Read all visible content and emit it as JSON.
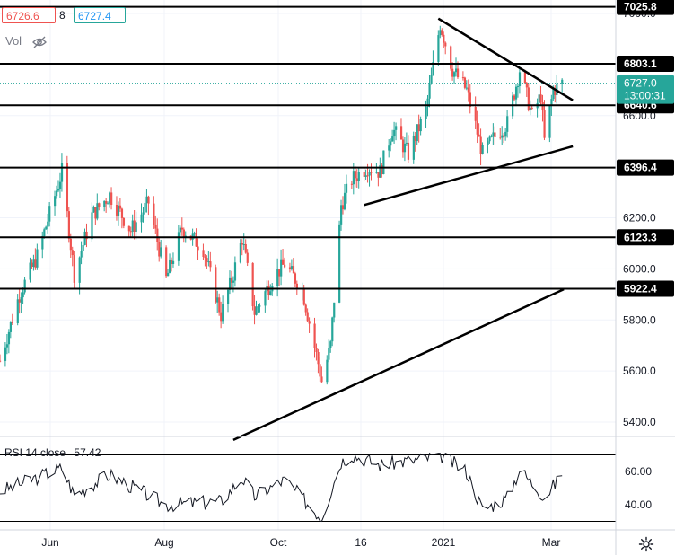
{
  "header": {
    "bid": "6726.6",
    "spread": "8",
    "ask": "6727.4",
    "volume_label": "Vol"
  },
  "rsi_legend": {
    "label": "RSI 14 close",
    "value": "57.42"
  },
  "price_axis": {
    "ticks": [
      "7000.0",
      "6600.0",
      "6200.0",
      "6000.0",
      "5800.0",
      "5600.0",
      "5400.0"
    ],
    "level_labels": [
      "7025.8",
      "6803.1",
      "6640.6",
      "6396.4",
      "6123.3",
      "5922.4"
    ],
    "current_price": "6727.0",
    "countdown": "13:00:31"
  },
  "rsi_axis": {
    "ticks": [
      "60.00",
      "40.00"
    ]
  },
  "time_axis": {
    "labels": [
      "Jun",
      "Aug",
      "Oct",
      "16",
      "2021",
      "Mar"
    ]
  },
  "colors": {
    "up": "#26a69a",
    "down": "#ef5350",
    "levels": "#000000",
    "current_price_bg": "#26a69a",
    "grid": "#f0f3fa"
  },
  "chart_data": [
    {
      "type": "candlestick",
      "y_range": [
        5340,
        7050
      ],
      "current_price": 6727.0,
      "horizontal_levels": [
        7025.8,
        6803.1,
        6640.6,
        6396.4,
        6123.3,
        5922.4
      ],
      "trend_lines": [
        {
          "from": [
            "2021-01-04",
            6980
          ],
          "to": [
            "2021-03-22",
            6660
          ]
        },
        {
          "from": [
            "2020-11-23",
            6250
          ],
          "to": [
            "2021-03-22",
            6480
          ]
        },
        {
          "from": [
            "2020-09-10",
            5330
          ],
          "to": [
            "2021-03-16",
            5920
          ]
        }
      ],
      "close_path": [
        [
          "2020-05-01",
          5640
        ],
        [
          "2020-05-12",
          5900
        ],
        [
          "2020-05-22",
          6050
        ],
        [
          "2020-06-05",
          6380
        ],
        [
          "2020-06-12",
          5980
        ],
        [
          "2020-06-22",
          6210
        ],
        [
          "2020-07-02",
          6290
        ],
        [
          "2020-07-14",
          6150
        ],
        [
          "2020-07-24",
          6260
        ],
        [
          "2020-08-03",
          5960
        ],
        [
          "2020-08-12",
          6160
        ],
        [
          "2020-08-24",
          6080
        ],
        [
          "2020-09-03",
          5820
        ],
        [
          "2020-09-10",
          5980
        ],
        [
          "2020-09-15",
          6120
        ],
        [
          "2020-09-22",
          5830
        ],
        [
          "2020-10-02",
          5960
        ],
        [
          "2020-10-09",
          6020
        ],
        [
          "2020-10-19",
          5920
        ],
        [
          "2020-10-28",
          5630
        ],
        [
          "2020-10-30",
          5560
        ],
        [
          "2020-11-04",
          5700
        ],
        [
          "2020-11-10",
          6250
        ],
        [
          "2020-11-16",
          6350
        ],
        [
          "2020-11-25",
          6400
        ],
        [
          "2020-12-02",
          6380
        ],
        [
          "2020-12-09",
          6550
        ],
        [
          "2020-12-18",
          6450
        ],
        [
          "2020-12-28",
          6620
        ],
        [
          "2021-01-05",
          6960
        ],
        [
          "2021-01-12",
          6780
        ],
        [
          "2021-01-20",
          6700
        ],
        [
          "2021-01-29",
          6450
        ],
        [
          "2021-02-05",
          6520
        ],
        [
          "2021-02-12",
          6570
        ],
        [
          "2021-02-19",
          6780
        ],
        [
          "2021-02-26",
          6600
        ],
        [
          "2021-03-03",
          6680
        ],
        [
          "2021-03-05",
          6500
        ],
        [
          "2021-03-10",
          6700
        ],
        [
          "2021-03-15",
          6727
        ]
      ]
    },
    {
      "type": "line",
      "name": "RSI 14 close",
      "y_range": [
        28,
        72
      ],
      "bands": [
        70,
        30
      ],
      "x": [
        "2020-05-01",
        "2020-06-05",
        "2020-06-12",
        "2020-07-02",
        "2020-08-03",
        "2020-09-03",
        "2020-09-15",
        "2020-09-22",
        "2020-10-09",
        "2020-10-30",
        "2020-11-10",
        "2020-11-16",
        "2020-12-02",
        "2020-12-28",
        "2021-01-05",
        "2021-01-20",
        "2021-01-29",
        "2021-02-12",
        "2021-02-19",
        "2021-03-05",
        "2021-03-15"
      ],
      "values": [
        48,
        62,
        46,
        58,
        40,
        42,
        56,
        45,
        55,
        32,
        66,
        70,
        64,
        68,
        70,
        60,
        37,
        44,
        61,
        45,
        57.42
      ]
    }
  ]
}
